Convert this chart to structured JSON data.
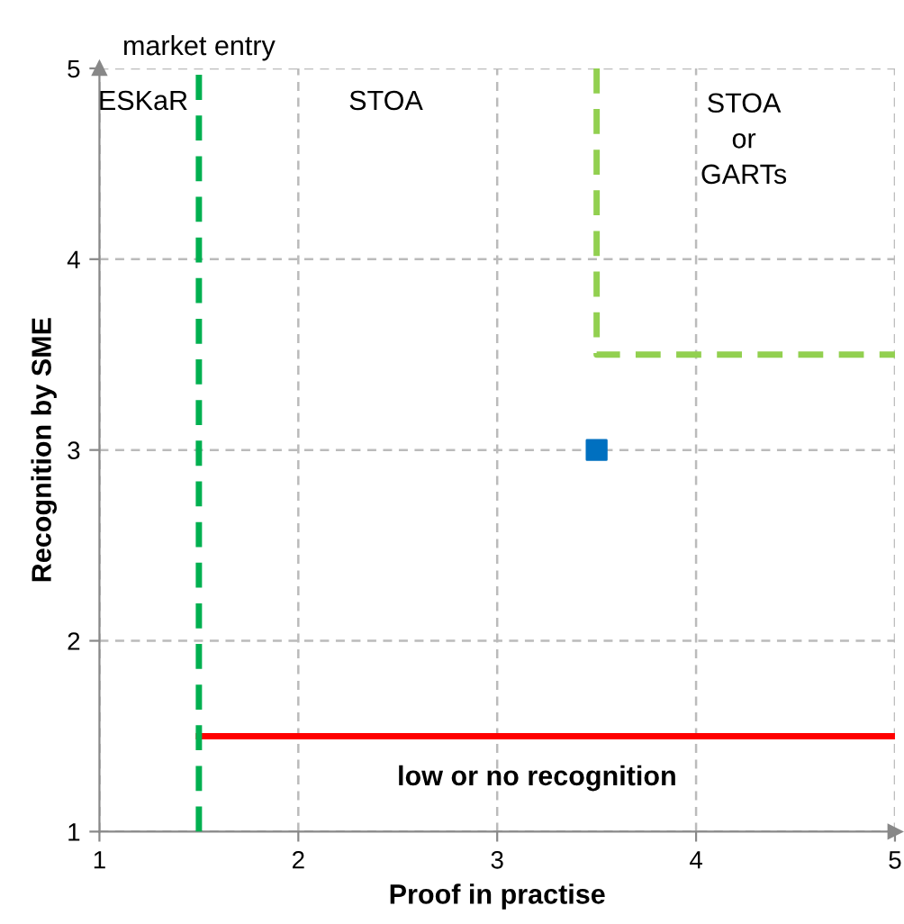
{
  "chart_data": {
    "type": "line",
    "xlabel": "Proof in practise",
    "ylabel": "Recognition by SME",
    "xlim": [
      1,
      5
    ],
    "ylim": [
      1,
      5
    ],
    "xticks": [
      1,
      2,
      3,
      4,
      5
    ],
    "yticks": [
      1,
      2,
      3,
      4,
      5
    ],
    "grid": true,
    "legend": false,
    "series": [
      {
        "x": [
          3.5,
          3.5,
          5
        ],
        "values": [
          5,
          3.5,
          3.5
        ],
        "color": "#92d050",
        "line_style": "dashed",
        "marker": "none"
      },
      {
        "x": [
          1.5,
          5
        ],
        "values": [
          1.5,
          1.5
        ],
        "color": "#ff0000",
        "line_style": "solid",
        "marker": "none"
      },
      {
        "type": "scatter",
        "x": [
          3.5
        ],
        "values": [
          3
        ],
        "color": "#0070c0",
        "marker": "square"
      }
    ],
    "ref_lines": [
      {
        "axis": "x",
        "value": 1.5,
        "label": "market entry",
        "color": "#00b050",
        "line_style": "dashed"
      }
    ],
    "annotations": [
      "ESKaR",
      "STOA",
      "STOA\nor\nGARTs",
      "low or no recognition"
    ]
  }
}
